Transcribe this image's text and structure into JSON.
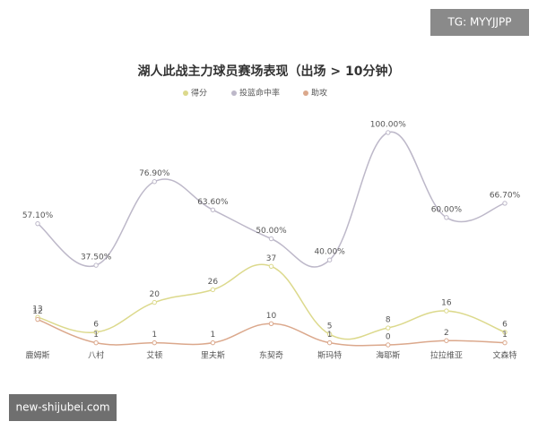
{
  "chart_data": {
    "type": "line",
    "title": "湖人此战主力球员赛场表现（出场 > 10分钟）",
    "categories": [
      "鹿姆斯",
      "八村",
      "艾顿",
      "里夫斯",
      "东契奇",
      "斯玛特",
      "海耶斯",
      "拉拉维亚",
      "文森特"
    ],
    "series": [
      {
        "name": "得分",
        "color": "#dcd98c",
        "values": [
          13,
          6,
          20,
          26,
          37,
          5,
          8,
          16,
          6
        ]
      },
      {
        "name": "投篮命中率",
        "color": "#bdb8c9",
        "values": [
          57.1,
          37.5,
          76.9,
          63.6,
          50,
          40,
          100,
          60,
          66.7
        ],
        "value_labels": [
          "57.10%",
          "37.50%",
          "76.90%",
          "63.60%",
          "50.00%",
          "40.00%",
          "100.00%",
          "60.00%",
          "66.70%"
        ]
      },
      {
        "name": "助攻",
        "color": "#dba88c",
        "values": [
          12,
          1,
          1,
          1,
          10,
          1,
          0,
          2,
          1
        ]
      }
    ],
    "ylim": [
      0,
      100
    ]
  },
  "watermarks": {
    "top": "TG: MYYJJPP",
    "bottom": "new-shijubei.com"
  }
}
